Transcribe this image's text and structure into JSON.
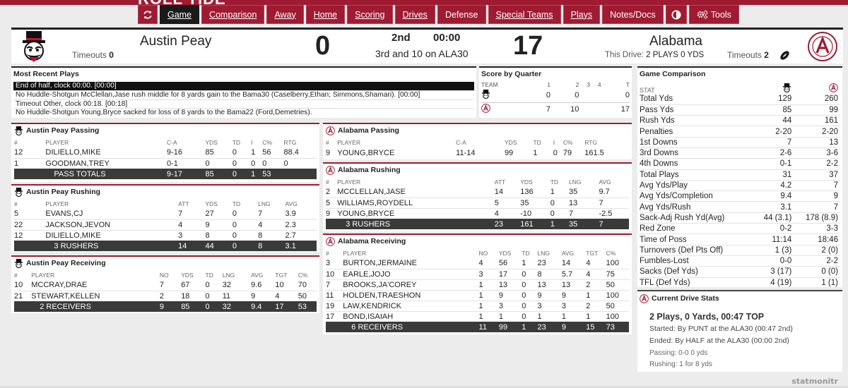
{
  "header": {
    "title": "ROLL TIDE"
  },
  "nav": {
    "refresh_icon": "refresh-icon",
    "items": [
      "Game",
      "Comparison",
      "Away",
      "Home",
      "Scoring",
      "Drives",
      "Defense",
      "Special Teams",
      "Plays",
      "Notes/Docs"
    ],
    "active": "Game",
    "theme_icon": "contrast-icon",
    "tools_label": "Tools",
    "tools_icon": "gears-icon"
  },
  "scoreboard": {
    "away": {
      "name": "Austin Peay",
      "timeouts_label": "Timeouts",
      "timeouts": "0",
      "score": "0"
    },
    "home": {
      "name": "Alabama",
      "timeouts_label": "Timeouts",
      "timeouts": "2",
      "score": "17"
    },
    "quarter": "2nd",
    "clock": "00:00",
    "situation": "3rd and 10 on ALA30",
    "this_drive_label": "This Drive:",
    "this_drive_value": "2 PLAYS 0 YDS"
  },
  "recent_plays": {
    "title": "Most Recent Plays",
    "items": [
      "End of half, clock 00:00. [00:00]",
      "No Huddle-Shotgun McClellan,Jase rush middle for 8 yards gain to the Bama30 (Caselberry,Ethan; Simmons,Shamari). [00:00]",
      "Timeout Other, clock 00:18. [00:18]",
      "No Huddle-Shotgun Young,Bryce sacked for loss of 8 yards to the Bama22 (Ford,Demetries)."
    ]
  },
  "score_by_quarter": {
    "title": "Score by Quarter",
    "headers": [
      "TEAM",
      "1",
      "2",
      "3",
      "4",
      "T"
    ],
    "rows": [
      {
        "team": "austin-peay-logo",
        "q": [
          "0",
          "0",
          "",
          ""
        ],
        "t": "0"
      },
      {
        "team": "alabama-logo",
        "q": [
          "7",
          "10",
          "",
          ""
        ],
        "t": "17"
      }
    ]
  },
  "ap_passing": {
    "title": "Austin Peay Passing",
    "headers": [
      "#",
      "PLAYER",
      "C-A",
      "YDS",
      "TD",
      "I",
      "C%",
      "RTG"
    ],
    "rows": [
      [
        "12",
        "DILIELLO,MIKE",
        "9-16",
        "85",
        "0",
        "1",
        "56",
        "88.4"
      ],
      [
        "1",
        "GOODMAN,TREY",
        "0-1",
        "0",
        "0",
        "0",
        "0",
        "0"
      ]
    ],
    "total": [
      "",
      "PASS TOTALS",
      "9-17",
      "85",
      "0",
      "1",
      "53",
      ""
    ]
  },
  "ap_rushing": {
    "title": "Austin Peay Rushing",
    "headers": [
      "#",
      "PLAYER",
      "ATT",
      "YDS",
      "TD",
      "LNG",
      "AVG"
    ],
    "rows": [
      [
        "5",
        "EVANS,CJ",
        "7",
        "27",
        "0",
        "7",
        "3.9"
      ],
      [
        "22",
        "JACKSON,JEVON",
        "4",
        "9",
        "0",
        "4",
        "2.3"
      ],
      [
        "12",
        "DILIELLO,MIKE",
        "3",
        "8",
        "0",
        "8",
        "2.7"
      ]
    ],
    "total": [
      "",
      "3 RUSHERS",
      "14",
      "44",
      "0",
      "8",
      "3.1"
    ]
  },
  "ap_receiving": {
    "title": "Austin Peay Receiving",
    "headers": [
      "#",
      "PLAYER",
      "NO",
      "YDS",
      "TD",
      "LNG",
      "AVG",
      "TGT",
      "C%"
    ],
    "rows": [
      [
        "10",
        "MCCRAY,DRAE",
        "7",
        "67",
        "0",
        "32",
        "9.6",
        "10",
        "70"
      ],
      [
        "21",
        "STEWART,KELLEN",
        "2",
        "18",
        "0",
        "11",
        "9",
        "4",
        "50"
      ]
    ],
    "total": [
      "",
      "2 RECEIVERS",
      "9",
      "85",
      "0",
      "32",
      "9.4",
      "17",
      "53"
    ]
  },
  "al_passing": {
    "title": "Alabama Passing",
    "headers": [
      "#",
      "PLAYER",
      "C-A",
      "YDS",
      "TD",
      "I",
      "C%",
      "RTG"
    ],
    "rows": [
      [
        "9",
        "YOUNG,BRYCE",
        "11-14",
        "99",
        "1",
        "0",
        "79",
        "161.5"
      ]
    ]
  },
  "al_rushing": {
    "title": "Alabama Rushing",
    "headers": [
      "#",
      "PLAYER",
      "ATT",
      "YDS",
      "TD",
      "LNG",
      "AVG"
    ],
    "rows": [
      [
        "2",
        "MCCLELLAN,JASE",
        "14",
        "136",
        "1",
        "35",
        "9.7"
      ],
      [
        "5",
        "WILLIAMS,ROYDELL",
        "5",
        "35",
        "0",
        "13",
        "7"
      ],
      [
        "9",
        "YOUNG,BRYCE",
        "4",
        "-10",
        "0",
        "7",
        "-2.5"
      ]
    ],
    "total": [
      "",
      "3 RUSHERS",
      "23",
      "161",
      "1",
      "35",
      "7"
    ]
  },
  "al_receiving": {
    "title": "Alabama Receiving",
    "headers": [
      "#",
      "PLAYER",
      "NO",
      "YDS",
      "TD",
      "LNG",
      "AVG",
      "TGT",
      "C%"
    ],
    "rows": [
      [
        "3",
        "BURTON,JERMAINE",
        "4",
        "56",
        "1",
        "23",
        "14",
        "4",
        "100"
      ],
      [
        "10",
        "EARLE,JOJO",
        "3",
        "17",
        "0",
        "8",
        "5.7",
        "4",
        "75"
      ],
      [
        "7",
        "BROOKS,JA'COREY",
        "1",
        "13",
        "0",
        "13",
        "13",
        "2",
        "50"
      ],
      [
        "11",
        "HOLDEN,TRAESHON",
        "1",
        "9",
        "0",
        "9",
        "9",
        "1",
        "100"
      ],
      [
        "19",
        "LAW,KENDRICK",
        "1",
        "3",
        "0",
        "3",
        "3",
        "2",
        "50"
      ],
      [
        "17",
        "BOND,ISAIAH",
        "1",
        "1",
        "0",
        "1",
        "1",
        "1",
        "100"
      ]
    ],
    "total": [
      "",
      "6 RECEIVERS",
      "11",
      "99",
      "1",
      "23",
      "9",
      "15",
      "73"
    ]
  },
  "game_comparison": {
    "title": "Game Comparison",
    "stat_header": "STAT",
    "rows": [
      [
        "Total Yds",
        "129",
        "260"
      ],
      [
        "Pass Yds",
        "85",
        "99"
      ],
      [
        "Rush Yds",
        "44",
        "161"
      ],
      [
        "Penalties",
        "2-20",
        "2-20"
      ],
      [
        "1st Downs",
        "7",
        "13"
      ],
      [
        "3rd Downs",
        "2-6",
        "3-6"
      ],
      [
        "4th Downs",
        "0-1",
        "2-2"
      ],
      [
        "Total Plays",
        "31",
        "37"
      ],
      [
        "Avg Yds/Play",
        "4.2",
        "7"
      ],
      [
        "Avg Yds/Completion",
        "9.4",
        "9"
      ],
      [
        "Avg Yds/Rush",
        "3.1",
        "7"
      ],
      [
        "Sack-Adj Rush Yd(Avg)",
        "44 (3.1)",
        "178 (8.9)"
      ],
      [
        "Red Zone",
        "0-2",
        "3-3"
      ],
      [
        "Time of Poss",
        "11:14",
        "18:46"
      ],
      [
        "Turnovers (Def Pts Off)",
        "1 (3)",
        "2 (0)"
      ],
      [
        "Fumbles-Lost",
        "0-0",
        "2-2"
      ],
      [
        "Sacks (Def Yds)",
        "3 (17)",
        "0 (0)"
      ],
      [
        "TFL (Def Yds)",
        "4 (19)",
        "1 (1)"
      ]
    ]
  },
  "current_drive": {
    "title": "Current Drive Stats",
    "headline": "2 Plays, 0 Yards, 00:47 TOP",
    "started": "Started: By PUNT at the ALA30 (00:47 2nd)",
    "ended": "Ended: By HALF at the ALA30 (00:00 2nd)",
    "passing": "Passing: 0-0 0 yds",
    "rushing": "Rushing: 1 for 8 yds"
  },
  "footer": {
    "brand": "statmonitr"
  },
  "colors": {
    "crimson": "#9e1b32",
    "dark": "#222222",
    "total_row": "#3a3a3a"
  }
}
